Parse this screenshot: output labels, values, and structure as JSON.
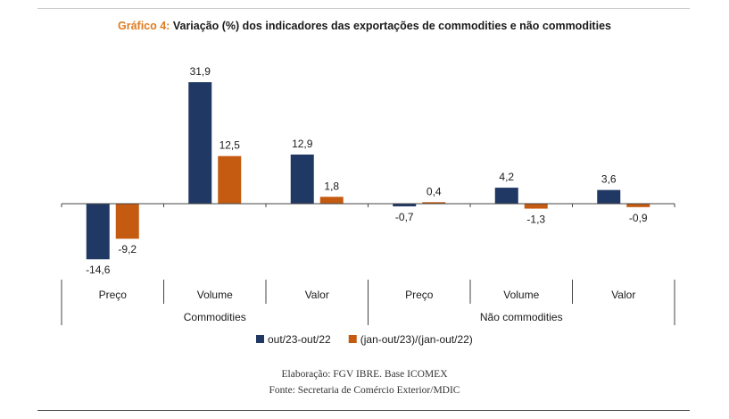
{
  "title": {
    "prefix": "Gráfico 4:",
    "text": "Variação (%) dos indicadores das exportações de commodities e não commodities"
  },
  "chart_data": {
    "type": "bar",
    "groups": [
      {
        "label": "Commodities",
        "categories": [
          "Preço",
          "Volume",
          "Valor"
        ]
      },
      {
        "label": "Não commodities",
        "categories": [
          "Preço",
          "Volume",
          "Valor"
        ]
      }
    ],
    "categories": [
      "Preço",
      "Volume",
      "Valor",
      "Preço",
      "Volume",
      "Valor"
    ],
    "series": [
      {
        "name": "out/23-out/22",
        "color": "#203864",
        "values": [
          -14.6,
          31.9,
          12.9,
          -0.7,
          4.2,
          3.6
        ],
        "labels": [
          "-14,6",
          "31,9",
          "12,9",
          "-0,7",
          "4,2",
          "3,6"
        ]
      },
      {
        "name": "(jan-out/23)/(jan-out/22)",
        "color": "#c55a11",
        "values": [
          -9.2,
          12.5,
          1.8,
          0.4,
          -1.3,
          -0.9
        ],
        "labels": [
          "-9,2",
          "12,5",
          "1,8",
          "0,4",
          "-1,3",
          "-0,9"
        ]
      }
    ],
    "ylim": [
      -17,
      36
    ],
    "grid": false,
    "legend_position": "bottom"
  },
  "footer": {
    "line1": "Elaboração: FGV IBRE. Base ICOMEX",
    "line2": "Fonte: Secretaria de Comércio Exterior/MDIC"
  }
}
